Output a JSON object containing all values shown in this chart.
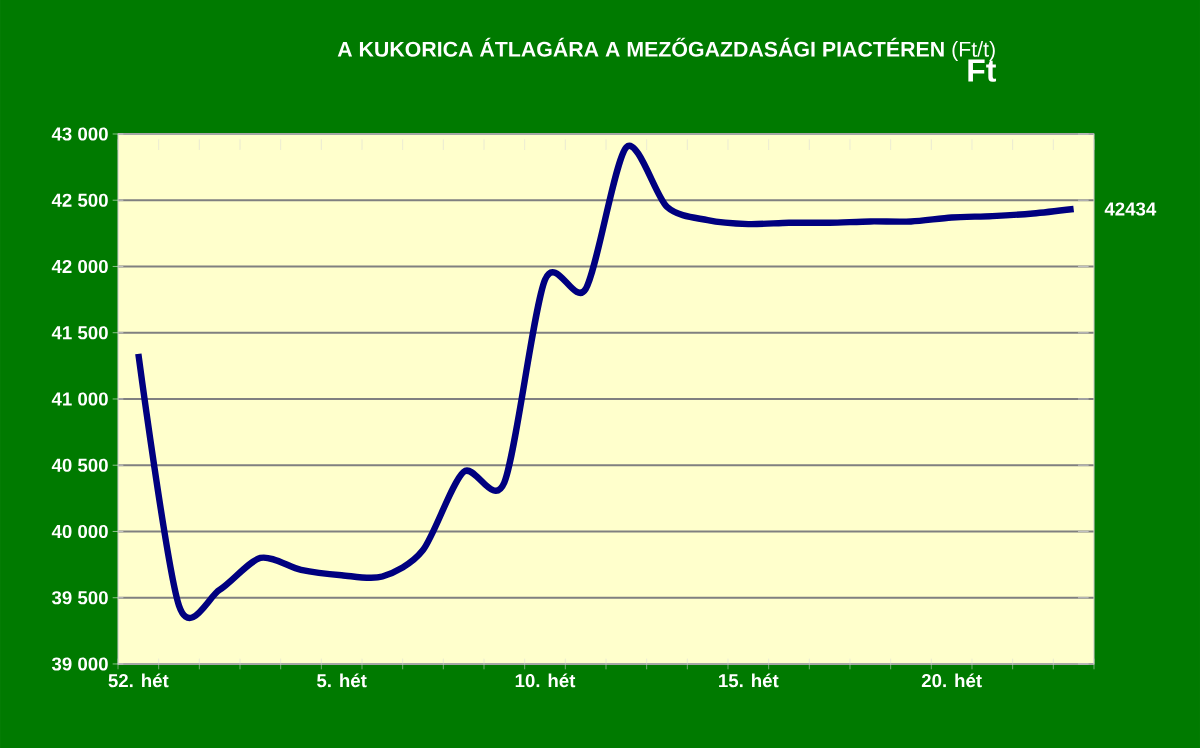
{
  "chart_data": {
    "type": "line",
    "title": "**A KUKORICA ÁTLAGÁRA A MEZŐGAZDASÁGI PIACTÉREN** (Ft/t)",
    "annotations": [
      "Ft"
    ],
    "categories": [
      "52. hét",
      null,
      null,
      null,
      null,
      "5. hét",
      null,
      null,
      null,
      null,
      "10. hét",
      null,
      null,
      null,
      null,
      "15. hét",
      null,
      null,
      null,
      null,
      "20. hét",
      null,
      null,
      null
    ],
    "series": [
      {
        "color": "#00007f",
        "values": [
          41340,
          39440,
          39560,
          39800,
          39710,
          39670,
          39660,
          39860,
          40450,
          40370,
          41900,
          41830,
          42900,
          42450,
          42350,
          42320,
          42330,
          42330,
          42340,
          42340,
          42370,
          42380,
          42400,
          42434
        ],
        "value_labels": [
          null,
          null,
          null,
          null,
          null,
          null,
          null,
          null,
          null,
          null,
          null,
          null,
          null,
          null,
          null,
          null,
          null,
          null,
          null,
          null,
          null,
          null,
          null,
          "42434"
        ]
      }
    ],
    "ylim": [
      39000,
      43000
    ],
    "yticks": [
      {
        "value": 39000,
        "label": "39 000"
      },
      {
        "value": 39500,
        "label": "39 500"
      },
      {
        "value": 40000,
        "label": "40 000"
      },
      {
        "value": 40500,
        "label": "40 500"
      },
      {
        "value": 41000,
        "label": "41 000"
      },
      {
        "value": 41500,
        "label": "41 500"
      },
      {
        "value": 42000,
        "label": "42 000"
      },
      {
        "value": 42500,
        "label": "42 500"
      },
      {
        "value": 43000,
        "label": "43 000"
      }
    ],
    "grid": "y",
    "marker": "none",
    "line_style": "solid"
  }
}
